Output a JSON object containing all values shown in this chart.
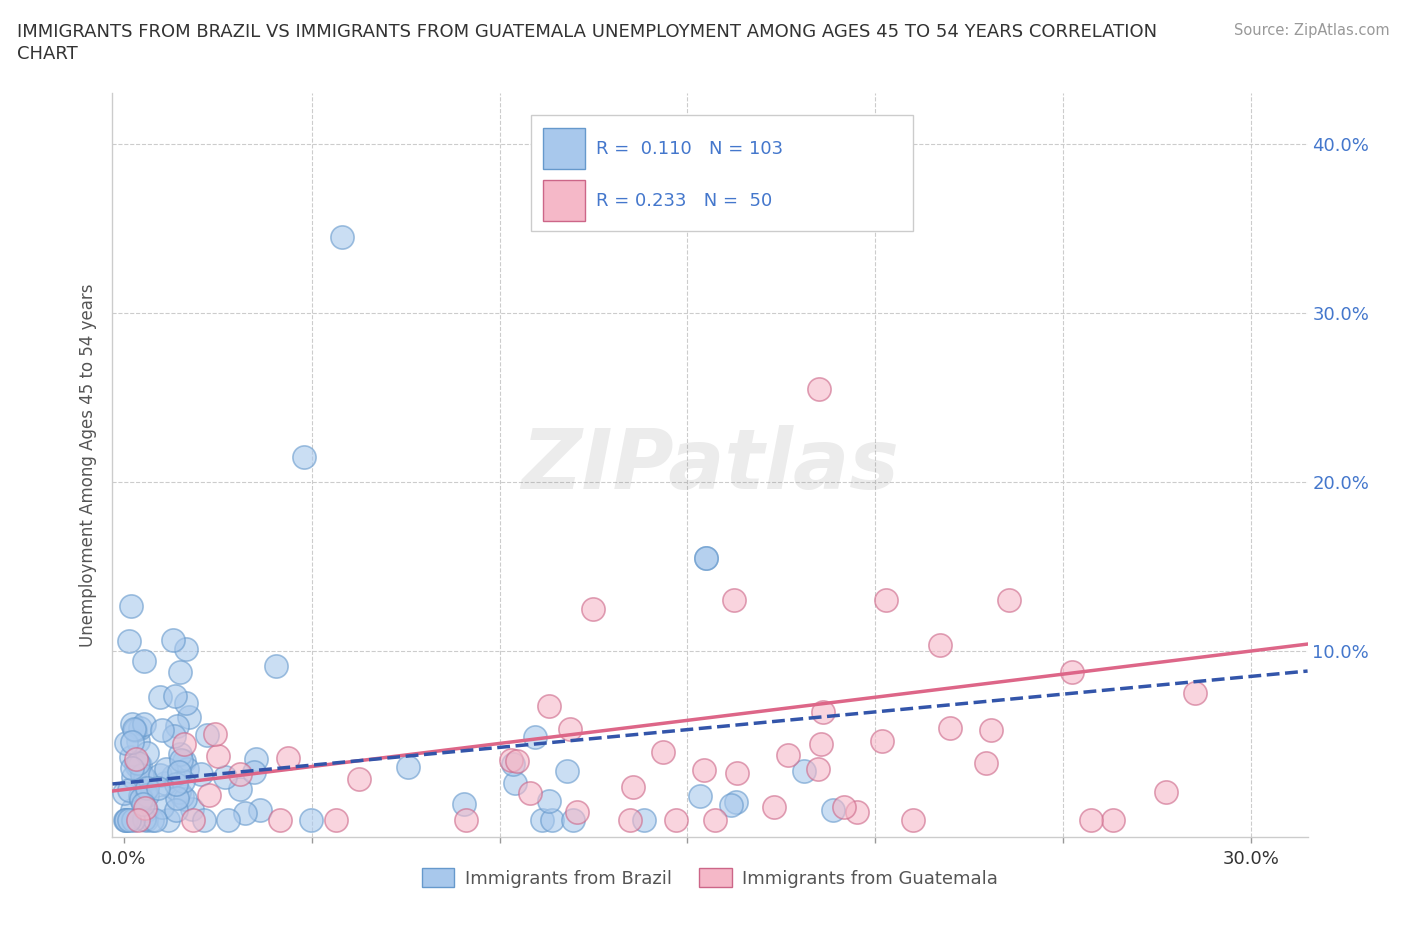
{
  "title_line1": "IMMIGRANTS FROM BRAZIL VS IMMIGRANTS FROM GUATEMALA UNEMPLOYMENT AMONG AGES 45 TO 54 YEARS CORRELATION",
  "title_line2": "CHART",
  "source_text": "Source: ZipAtlas.com",
  "ylabel": "Unemployment Among Ages 45 to 54 years",
  "x_ticks": [
    0.0,
    0.05,
    0.1,
    0.15,
    0.2,
    0.25,
    0.3
  ],
  "y_ticks": [
    0.0,
    0.1,
    0.2,
    0.3,
    0.4
  ],
  "xlim": [
    -0.003,
    0.315
  ],
  "ylim": [
    -0.01,
    0.43
  ],
  "brazil_color": "#A8C8EC",
  "brazil_edge_color": "#6699CC",
  "guatemala_color": "#F5B8C8",
  "guatemala_edge_color": "#CC6688",
  "brazil_R": 0.11,
  "brazil_N": 103,
  "guatemala_R": 0.233,
  "guatemala_N": 50,
  "brazil_line_color": "#3355AA",
  "guatemala_line_color": "#DD6688",
  "watermark": "ZIPatlas",
  "background_color": "#FFFFFF",
  "grid_color": "#CCCCCC",
  "axis_label_color": "#4477CC",
  "title_color": "#333333",
  "ylabel_color": "#555555"
}
